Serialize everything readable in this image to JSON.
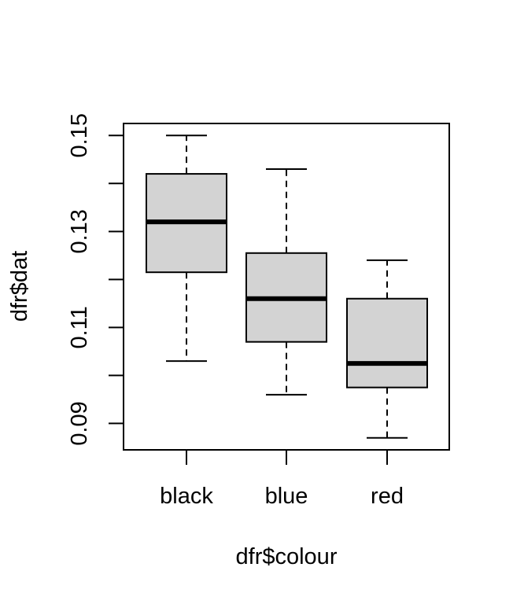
{
  "chart_data": {
    "type": "boxplot",
    "title": "",
    "xlabel": "dfr$colour",
    "ylabel": "dfr$dat",
    "categories": [
      "black",
      "blue",
      "red"
    ],
    "boxes": [
      {
        "category": "black",
        "whisker_low": 0.103,
        "q1": 0.1215,
        "median": 0.132,
        "q3": 0.142,
        "whisker_high": 0.15
      },
      {
        "category": "blue",
        "whisker_low": 0.096,
        "q1": 0.107,
        "median": 0.116,
        "q3": 0.1255,
        "whisker_high": 0.143
      },
      {
        "category": "red",
        "whisker_low": 0.087,
        "q1": 0.0975,
        "median": 0.1025,
        "q3": 0.116,
        "whisker_high": 0.124
      }
    ],
    "ylim": [
      0.0845,
      0.1525
    ],
    "y_ticks": [
      0.09,
      0.1,
      0.11,
      0.12,
      0.13,
      0.14,
      0.15
    ],
    "y_tick_labels": [
      "0.09",
      "",
      "0.11",
      "",
      "0.13",
      "",
      "0.15"
    ],
    "grid": false,
    "legend": "none",
    "colors": {
      "box_fill": "#d3d3d3",
      "stroke": "#000000",
      "background": "#ffffff"
    }
  }
}
